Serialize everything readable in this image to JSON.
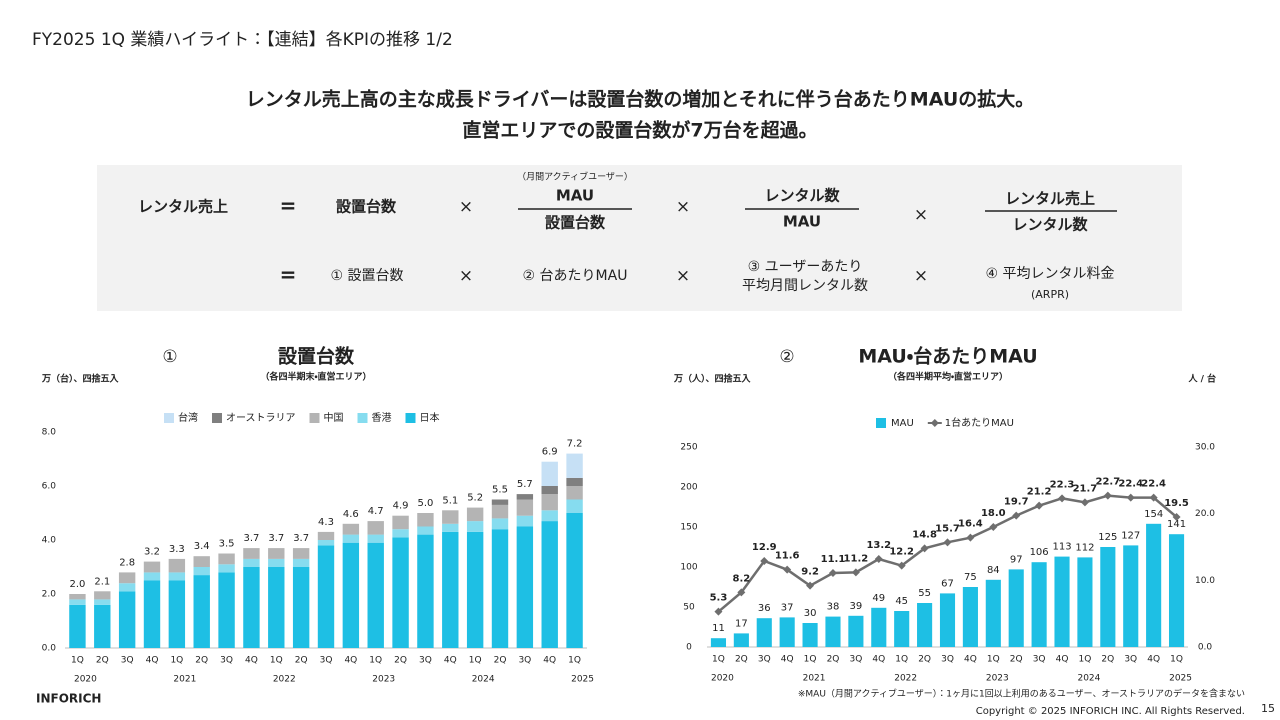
{
  "header": {
    "title": "FY2025 1Q 業績ハイライト：【連結】各KPIの推移 1/2"
  },
  "headline": [
    "レンタル売上高の主な成長ドライバーは設置台数の増加とそれに伴う台あたりMAUの拡大。",
    "直営エリアでの設置台数が7万台を超過。"
  ],
  "formula": {
    "lhs": "レンタル売上",
    "eq": "=",
    "times": "×",
    "term1": "設置台数",
    "term2_note": "（月間アクティブユーザー）",
    "term2_num": "MAU",
    "term2_den": "設置台数",
    "term3_num": "レンタル数",
    "term3_den": "MAU",
    "term4_num": "レンタル売上",
    "term4_den": "レンタル数",
    "row2": [
      "① 設置台数",
      "② 台あたりMAU",
      "③ ユーザーあたり",
      "平均月間レンタル数",
      "④ 平均レンタル料金",
      "(ARPR)"
    ]
  },
  "chart_data": [
    {
      "type": "stacked_bar",
      "number": "①",
      "title": "設置台数",
      "subtitle": "（各四半期末・直営エリア）",
      "y_label": "万（台）、四捨五入",
      "categories": [
        "1Q",
        "2Q",
        "3Q",
        "4Q",
        "1Q",
        "2Q",
        "3Q",
        "4Q",
        "1Q",
        "2Q",
        "3Q",
        "4Q",
        "1Q",
        "2Q",
        "3Q",
        "4Q",
        "1Q",
        "2Q",
        "3Q",
        "4Q",
        "1Q"
      ],
      "years": [
        "2020",
        null,
        null,
        null,
        "2021",
        null,
        null,
        null,
        "2022",
        null,
        null,
        null,
        "2023",
        null,
        null,
        null,
        "2024",
        null,
        null,
        null,
        "2025"
      ],
      "series": [
        {
          "name": "台湾",
          "color": "#c6e0f5",
          "values": [
            null,
            null,
            null,
            null,
            null,
            null,
            null,
            null,
            null,
            null,
            null,
            null,
            null,
            null,
            null,
            null,
            null,
            null,
            null,
            0.9,
            0.9
          ]
        },
        {
          "name": "オーストラリア",
          "color": "#7f7f7f",
          "values": [
            null,
            null,
            null,
            null,
            null,
            null,
            null,
            null,
            null,
            null,
            null,
            null,
            null,
            null,
            null,
            null,
            null,
            0.2,
            0.2,
            0.3,
            0.3
          ]
        },
        {
          "name": "中国",
          "color": "#b4b4b4",
          "values": [
            0.2,
            0.3,
            0.4,
            0.4,
            0.5,
            0.4,
            0.4,
            0.4,
            0.4,
            0.4,
            0.3,
            0.4,
            0.5,
            0.5,
            0.5,
            0.5,
            0.5,
            0.5,
            0.6,
            0.6,
            0.5
          ]
        },
        {
          "name": "香港",
          "color": "#86dcef",
          "values": [
            0.2,
            0.2,
            0.3,
            0.3,
            0.3,
            0.3,
            0.3,
            0.3,
            0.3,
            0.3,
            0.2,
            0.3,
            0.3,
            0.3,
            0.3,
            0.3,
            0.4,
            0.4,
            0.4,
            0.4,
            0.5
          ]
        },
        {
          "name": "日本",
          "color": "#1ebfe4",
          "values": [
            1.6,
            1.6,
            2.1,
            2.5,
            2.5,
            2.7,
            2.8,
            3.0,
            3.0,
            3.0,
            3.8,
            3.9,
            3.9,
            4.1,
            4.2,
            4.3,
            4.3,
            4.4,
            4.5,
            4.7,
            5.0
          ]
        }
      ],
      "total_labels": [
        "2.0",
        "2.1",
        "2.8",
        "3.2",
        "3.3",
        "3.4",
        "3.5",
        "3.7",
        "3.7",
        "3.7",
        "4.3",
        "4.6",
        "4.7",
        "4.9",
        "5.0",
        "5.1",
        "5.2",
        "5.5",
        "5.7",
        "6.9",
        "7.2"
      ],
      "ylim": [
        0,
        8
      ],
      "yticks": [
        {
          "value": 0,
          "label": "0.0"
        },
        {
          "value": 2,
          "label": "2.0"
        },
        {
          "value": 4,
          "label": "4.0"
        },
        {
          "value": 6,
          "label": "6.0"
        },
        {
          "value": 8,
          "label": "8.0"
        }
      ],
      "grid": false
    },
    {
      "type": "combo",
      "number": "②",
      "title": "MAU・台あたりMAU",
      "subtitle": "（各四半期平均・直営エリア）",
      "y_label": "万（人）、四捨五入",
      "y2_label": "人 / 台",
      "categories": [
        "1Q",
        "2Q",
        "3Q",
        "4Q",
        "1Q",
        "2Q",
        "3Q",
        "4Q",
        "1Q",
        "2Q",
        "3Q",
        "4Q",
        "1Q",
        "2Q",
        "3Q",
        "4Q",
        "1Q",
        "2Q",
        "3Q",
        "4Q",
        "1Q"
      ],
      "years": [
        "2020",
        null,
        null,
        null,
        "2021",
        null,
        null,
        null,
        "2022",
        null,
        null,
        null,
        "2023",
        null,
        null,
        null,
        "2024",
        null,
        null,
        null,
        "2025"
      ],
      "series": [
        {
          "name": "MAU",
          "kind": "bar",
          "color": "#1ebfe4",
          "values": [
            11,
            17,
            36,
            37,
            30,
            38,
            39,
            49,
            45,
            55,
            67,
            75,
            84,
            97,
            106,
            113,
            112,
            125,
            127,
            154,
            141
          ]
        },
        {
          "name": "1台あたりMAU",
          "kind": "line",
          "axis": "y2",
          "color": "#6e6e6e",
          "values": [
            5.3,
            8.2,
            12.9,
            11.6,
            9.2,
            11.1,
            11.2,
            13.2,
            12.2,
            14.8,
            15.7,
            16.4,
            18.0,
            19.7,
            21.2,
            22.3,
            21.7,
            22.7,
            22.4,
            22.4,
            19.5
          ],
          "value_labels": [
            "5.3",
            "8.2",
            "12.9",
            "11.6",
            "9.2",
            "11.1",
            "11.2",
            "13.2",
            "12.2",
            "14.8",
            "15.7",
            "16.4",
            "18.0",
            "19.7",
            "21.2",
            "22.3",
            "21.7",
            "22.7",
            "22.4",
            "22.4",
            "19.5"
          ]
        }
      ],
      "ylim": [
        0,
        250
      ],
      "yticks": [
        0,
        50,
        100,
        150,
        200,
        250
      ],
      "y2lim": [
        0,
        30
      ],
      "y2ticks": [
        {
          "value": 0,
          "label": "0.0"
        },
        {
          "value": 10,
          "label": "10.0"
        },
        {
          "value": 20,
          "label": "20.0"
        },
        {
          "value": 30,
          "label": "30.0"
        }
      ],
      "grid": false
    }
  ],
  "footer": {
    "brand": "INFORICH",
    "note": "※MAU（月間アクティブユーザー）：1ヶ月に1回以上利用のあるユーザー、オーストラリアのデータを含まない",
    "copyright": "Copyright © 2025 INFORICH INC. All Rights Reserved.",
    "page": "15"
  }
}
